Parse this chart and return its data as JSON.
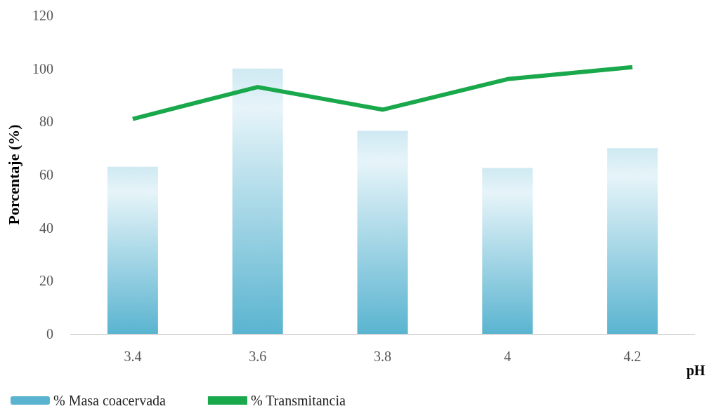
{
  "chart_data": {
    "type": "bar",
    "xlabel": "pH",
    "ylabel": "Porcentaje (%)",
    "categories": [
      "3.4",
      "3.6",
      "3.8",
      "4",
      "4.2"
    ],
    "series": [
      {
        "name": "% Masa coacervada",
        "color": "#5ab4d0",
        "values": [
          63,
          100,
          76.5,
          62.5,
          70
        ]
      },
      {
        "name": "% Transmitancia",
        "type": "line",
        "color": "#1aa84c",
        "values": [
          81,
          93,
          84.5,
          96,
          100.5
        ],
        "marker": "none"
      }
    ],
    "ylim": [
      0,
      120
    ],
    "yticks": [
      0,
      20,
      40,
      60,
      80,
      100,
      120
    ],
    "grid": false,
    "legend": "bottom left"
  }
}
